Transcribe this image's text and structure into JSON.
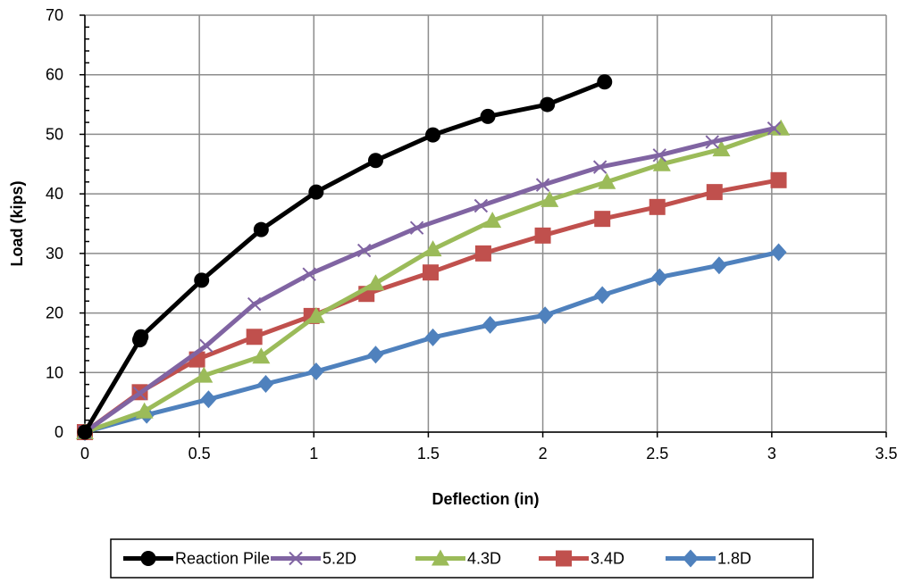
{
  "chart_data": {
    "type": "line",
    "title": "",
    "xlabel": "Deflection (in)",
    "ylabel": "Load (kips)",
    "xlim": [
      0,
      3.5
    ],
    "ylim": [
      0,
      70
    ],
    "xticks": [
      0,
      0.5,
      1,
      1.5,
      2,
      2.5,
      3,
      3.5
    ],
    "yticks": [
      0,
      10,
      20,
      30,
      40,
      50,
      60,
      70
    ],
    "xtick_labels": [
      "0",
      "0.5",
      "1",
      "1.5",
      "2",
      "2.5",
      "3",
      "3.5"
    ],
    "ytick_labels": [
      "0",
      "10",
      "20",
      "30",
      "40",
      "50",
      "60",
      "70"
    ],
    "grid": true,
    "legend_position": "bottom",
    "series": [
      {
        "name": "Reaction Pile",
        "color": "#000000",
        "marker": "circle",
        "points": [
          [
            0,
            0
          ],
          [
            0.24,
            15.5
          ],
          [
            0.245,
            16
          ],
          [
            0.51,
            25.5
          ],
          [
            0.77,
            34
          ],
          [
            1.01,
            40.3
          ],
          [
            1.27,
            45.6
          ],
          [
            1.52,
            49.9
          ],
          [
            1.76,
            53
          ],
          [
            2.02,
            55
          ],
          [
            2.27,
            58.8
          ]
        ]
      },
      {
        "name": "5.2D",
        "color": "#8064A2",
        "marker": "x",
        "points": [
          [
            0,
            0
          ],
          [
            0.24,
            6.5
          ],
          [
            0.53,
            14.5
          ],
          [
            0.74,
            21.5
          ],
          [
            0.98,
            26.5
          ],
          [
            1.22,
            30.5
          ],
          [
            1.45,
            34.3
          ],
          [
            1.73,
            38
          ],
          [
            2.0,
            41.5
          ],
          [
            2.25,
            44.5
          ],
          [
            2.51,
            46.5
          ],
          [
            2.74,
            48.7
          ],
          [
            3.01,
            51
          ]
        ]
      },
      {
        "name": "4.3D",
        "color": "#9BBB59",
        "marker": "triangle",
        "points": [
          [
            0,
            0
          ],
          [
            0.26,
            3.5
          ],
          [
            0.52,
            9.5
          ],
          [
            0.77,
            12.7
          ],
          [
            1.01,
            19.5
          ],
          [
            1.27,
            25
          ],
          [
            1.52,
            30.7
          ],
          [
            1.78,
            35.5
          ],
          [
            2.03,
            39
          ],
          [
            2.28,
            42
          ],
          [
            2.52,
            45
          ],
          [
            2.78,
            47.5
          ],
          [
            3.04,
            51
          ]
        ]
      },
      {
        "name": "3.4D",
        "color": "#C0504D",
        "marker": "square",
        "points": [
          [
            0,
            0
          ],
          [
            0.24,
            6.7
          ],
          [
            0.49,
            12.2
          ],
          [
            0.74,
            16
          ],
          [
            0.99,
            19.5
          ],
          [
            1.23,
            23.2
          ],
          [
            1.51,
            26.8
          ],
          [
            1.74,
            30
          ],
          [
            2.0,
            33
          ],
          [
            2.26,
            35.8
          ],
          [
            2.5,
            37.8
          ],
          [
            2.75,
            40.3
          ],
          [
            3.03,
            42.3
          ]
        ]
      },
      {
        "name": "1.8D",
        "color": "#4F81BD",
        "marker": "diamond",
        "points": [
          [
            0,
            0
          ],
          [
            0.27,
            2.9
          ],
          [
            0.54,
            5.5
          ],
          [
            0.79,
            8.1
          ],
          [
            1.01,
            10.2
          ],
          [
            1.27,
            13
          ],
          [
            1.52,
            15.9
          ],
          [
            1.77,
            18
          ],
          [
            2.01,
            19.6
          ],
          [
            2.26,
            23
          ],
          [
            2.51,
            26
          ],
          [
            2.77,
            28
          ],
          [
            3.03,
            30.2
          ]
        ]
      }
    ]
  }
}
